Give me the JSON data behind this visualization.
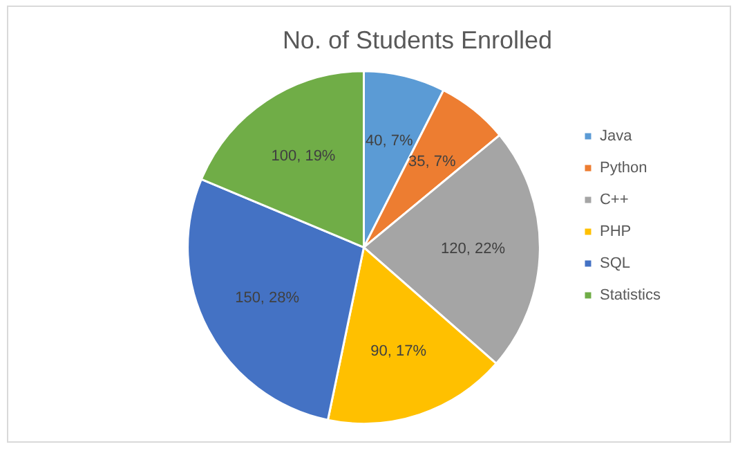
{
  "chart_data": {
    "type": "pie",
    "title": "No. of Students Enrolled",
    "categories": [
      "Java",
      "Python",
      "C++",
      "PHP",
      "SQL",
      "Statistics"
    ],
    "values": [
      40,
      35,
      120,
      90,
      150,
      100
    ],
    "colors": [
      "#5b9bd5",
      "#ed7d31",
      "#a5a5a5",
      "#ffc000",
      "#4472c4",
      "#70ad47"
    ],
    "value_labels": [
      "40, 7%",
      "35, 7%",
      "120, 22%",
      "90, 17%",
      "150, 28%",
      "100, 19%"
    ],
    "legend": "right"
  }
}
